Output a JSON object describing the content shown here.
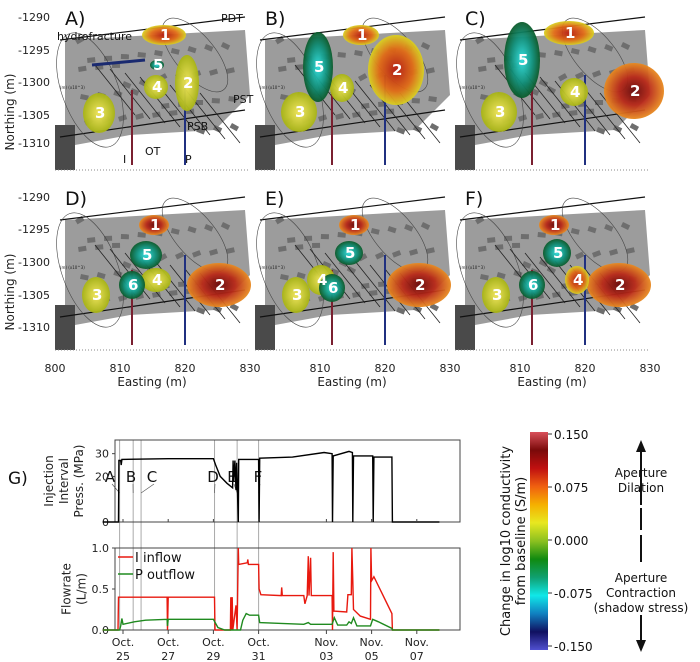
{
  "panels": [
    {
      "label": "A)",
      "numbers": [
        "1",
        "2",
        "3",
        "4",
        "5"
      ]
    },
    {
      "label": "B)",
      "numbers": [
        "1",
        "2",
        "3",
        "4",
        "5"
      ]
    },
    {
      "label": "C)",
      "numbers": [
        "1",
        "2",
        "3",
        "4",
        "5"
      ]
    },
    {
      "label": "D)",
      "numbers": [
        "1",
        "2",
        "3",
        "4",
        "5",
        "6"
      ]
    },
    {
      "label": "E)",
      "numbers": [
        "1",
        "2",
        "3",
        "4",
        "5",
        "6"
      ]
    },
    {
      "label": "F)",
      "numbers": [
        "1",
        "2",
        "3",
        "4",
        "5",
        "6"
      ]
    }
  ],
  "panel_annotations": {
    "hydrofracture": "hydrofracture",
    "pdt": "PDT",
    "pst": "PST",
    "psb": "PSB",
    "ot": "OT",
    "i": "I",
    "p": "P",
    "scale_text": "(m) (x10^3)"
  },
  "map_axes": {
    "ylabel": "Northing (m)",
    "xlabel": "Easting (m)",
    "yticks": [
      "-1290",
      "-1295",
      "-1300",
      "-1305",
      "-1310"
    ],
    "xticks_first": [
      "800",
      "810",
      "820",
      "830"
    ],
    "xticks_other": [
      "810",
      "820",
      "830"
    ]
  },
  "chart_data": [
    {
      "type": "line",
      "panel_label": "G)",
      "ylabel": [
        "Injection",
        "Interval",
        "Press. (MPa)"
      ],
      "yticks": [
        "0",
        "20",
        "30"
      ],
      "ylim": [
        0,
        36
      ],
      "xlim": [
        24.1,
        39
      ],
      "event_labels": [
        {
          "label": "A",
          "t": 24.85
        },
        {
          "label": "B",
          "t": 25.45
        },
        {
          "label": "C",
          "t": 25.8
        },
        {
          "label": "D",
          "t": 29.05
        },
        {
          "label": "E",
          "t": 30.05
        },
        {
          "label": "F",
          "t": 31.0
        }
      ],
      "series": [
        {
          "name": "Injection interval pressure",
          "color": "#000000",
          "points": [
            [
              24.1,
              0
            ],
            [
              24.8,
              0
            ],
            [
              24.82,
              27
            ],
            [
              24.9,
              27
            ],
            [
              24.92,
              25
            ],
            [
              24.95,
              27.5
            ],
            [
              27,
              27.8
            ],
            [
              29.0,
              27.8
            ],
            [
              29.1,
              25
            ],
            [
              29.3,
              20
            ],
            [
              29.6,
              17
            ],
            [
              29.85,
              15
            ],
            [
              29.87,
              27
            ],
            [
              29.9,
              18
            ],
            [
              29.95,
              27
            ],
            [
              30.0,
              14
            ],
            [
              30.03,
              26
            ],
            [
              30.1,
              0
            ],
            [
              30.12,
              27.5
            ],
            [
              31.0,
              27.5
            ],
            [
              31.02,
              0
            ],
            [
              31.05,
              28
            ],
            [
              32.5,
              28.5
            ],
            [
              33.9,
              30.5
            ],
            [
              34.25,
              30
            ],
            [
              34.27,
              0
            ],
            [
              34.3,
              29
            ],
            [
              35.0,
              31
            ],
            [
              35.15,
              30.5
            ],
            [
              35.17,
              0
            ],
            [
              35.2,
              29
            ],
            [
              36.05,
              29
            ],
            [
              36.07,
              0
            ],
            [
              36.1,
              28.5
            ],
            [
              36.9,
              28.5
            ],
            [
              36.92,
              0
            ],
            [
              39,
              0
            ]
          ]
        }
      ]
    },
    {
      "type": "line",
      "ylabel": [
        "Flowrate",
        "(L/m)"
      ],
      "yticks": [
        "0.0",
        "0.5",
        "1.0"
      ],
      "ylim": [
        0,
        1.0
      ],
      "xlim": [
        24.1,
        39
      ],
      "xticks": [
        {
          "t": 25,
          "label": [
            "Oct.",
            "25"
          ]
        },
        {
          "t": 27,
          "label": [
            "Oct.",
            "27"
          ]
        },
        {
          "t": 29,
          "label": [
            "Oct.",
            "29"
          ]
        },
        {
          "t": 31,
          "label": [
            "Oct.",
            "31"
          ]
        },
        {
          "t": 34,
          "label": [
            "Nov.",
            "03"
          ]
        },
        {
          "t": 36,
          "label": [
            "Nov.",
            "05"
          ]
        },
        {
          "t": 38,
          "label": [
            "Nov.",
            "07"
          ]
        }
      ],
      "legend": {
        "position": "top-left"
      },
      "series": [
        {
          "name": "I inflow",
          "color": "#e8190f",
          "points": [
            [
              24.1,
              0
            ],
            [
              24.78,
              0
            ],
            [
              24.8,
              0.4
            ],
            [
              26.95,
              0.4
            ],
            [
              26.97,
              0
            ],
            [
              27.0,
              0.4
            ],
            [
              29.05,
              0.4
            ],
            [
              29.07,
              0
            ],
            [
              29.75,
              0
            ],
            [
              29.77,
              0.4
            ],
            [
              29.8,
              0
            ],
            [
              29.83,
              0.4
            ],
            [
              29.86,
              0
            ],
            [
              30.0,
              0.3
            ],
            [
              30.05,
              0
            ],
            [
              30.1,
              1.0
            ],
            [
              30.12,
              0.8
            ],
            [
              30.5,
              0.82
            ],
            [
              30.52,
              0.86
            ],
            [
              30.55,
              0.8
            ],
            [
              31.0,
              0.8
            ],
            [
              31.02,
              0.5
            ],
            [
              31.1,
              0.43
            ],
            [
              32.0,
              0.42
            ],
            [
              32.02,
              0.52
            ],
            [
              32.05,
              0.42
            ],
            [
              33.0,
              0.42
            ],
            [
              33.05,
              0.32
            ],
            [
              33.15,
              0.42
            ],
            [
              33.2,
              0.9
            ],
            [
              33.23,
              0.42
            ],
            [
              33.3,
              0.88
            ],
            [
              33.33,
              0.42
            ],
            [
              34.25,
              0.42
            ],
            [
              34.27,
              0
            ],
            [
              34.3,
              0.95
            ],
            [
              34.33,
              0.23
            ],
            [
              34.9,
              0.22
            ],
            [
              34.95,
              0.43
            ],
            [
              35.1,
              0.43
            ],
            [
              35.13,
              1.0
            ],
            [
              35.17,
              0.6
            ],
            [
              35.2,
              0.25
            ],
            [
              35.5,
              0.17
            ],
            [
              35.95,
              0.13
            ],
            [
              35.97,
              1.0
            ],
            [
              36.0,
              0.6
            ],
            [
              36.1,
              0.65
            ],
            [
              36.9,
              0.2
            ],
            [
              36.92,
              0
            ],
            [
              39,
              0
            ]
          ]
        },
        {
          "name": "P outflow",
          "color": "#1f8a1f",
          "points": [
            [
              24.1,
              0
            ],
            [
              24.85,
              0
            ],
            [
              24.9,
              0.05
            ],
            [
              24.95,
              0.14
            ],
            [
              25.0,
              0.07
            ],
            [
              25.5,
              0.1
            ],
            [
              26.0,
              0.12
            ],
            [
              26.95,
              0.13
            ],
            [
              26.97,
              0.05
            ],
            [
              27.0,
              0.13
            ],
            [
              29.0,
              0.13
            ],
            [
              29.2,
              0.03
            ],
            [
              29.5,
              0.0
            ],
            [
              30.2,
              0.0
            ],
            [
              30.3,
              0.12
            ],
            [
              30.45,
              0.2
            ],
            [
              30.6,
              0.18
            ],
            [
              31.0,
              0.18
            ],
            [
              31.05,
              0.09
            ],
            [
              32,
              0.08
            ],
            [
              33.0,
              0.07
            ],
            [
              33.2,
              0.09
            ],
            [
              33.3,
              0.07
            ],
            [
              34.25,
              0.07
            ],
            [
              34.35,
              0.15
            ],
            [
              34.5,
              0.06
            ],
            [
              34.9,
              0.06
            ],
            [
              35.0,
              0.1
            ],
            [
              35.1,
              0.08
            ],
            [
              35.2,
              0.15
            ],
            [
              35.35,
              0.05
            ],
            [
              35.95,
              0.05
            ],
            [
              36.05,
              0.13
            ],
            [
              36.3,
              0.1
            ],
            [
              36.9,
              0.02
            ],
            [
              36.92,
              0
            ],
            [
              39,
              0
            ]
          ]
        }
      ]
    },
    {
      "type": "colorbar",
      "title": [
        "Change in log10 conductivity",
        "from baseline (S/m)"
      ],
      "ticks": [
        "0.150",
        "0.075",
        "0.000",
        "-0.075",
        "-0.150"
      ],
      "range": [
        -0.15,
        0.15
      ],
      "colors": [
        "#d9505a",
        "#7a0a0a",
        "#c01010",
        "#f06010",
        "#f5b000",
        "#e8e820",
        "#8cc020",
        "#108a10",
        "#10a070",
        "#10e8e8",
        "#1080c0",
        "#101060",
        "#5050d0"
      ],
      "annotations": {
        "dilation": [
          "Aperture",
          "Dilation"
        ],
        "contraction": [
          "Aperture",
          "Contraction",
          "(shadow stress)"
        ]
      }
    }
  ]
}
